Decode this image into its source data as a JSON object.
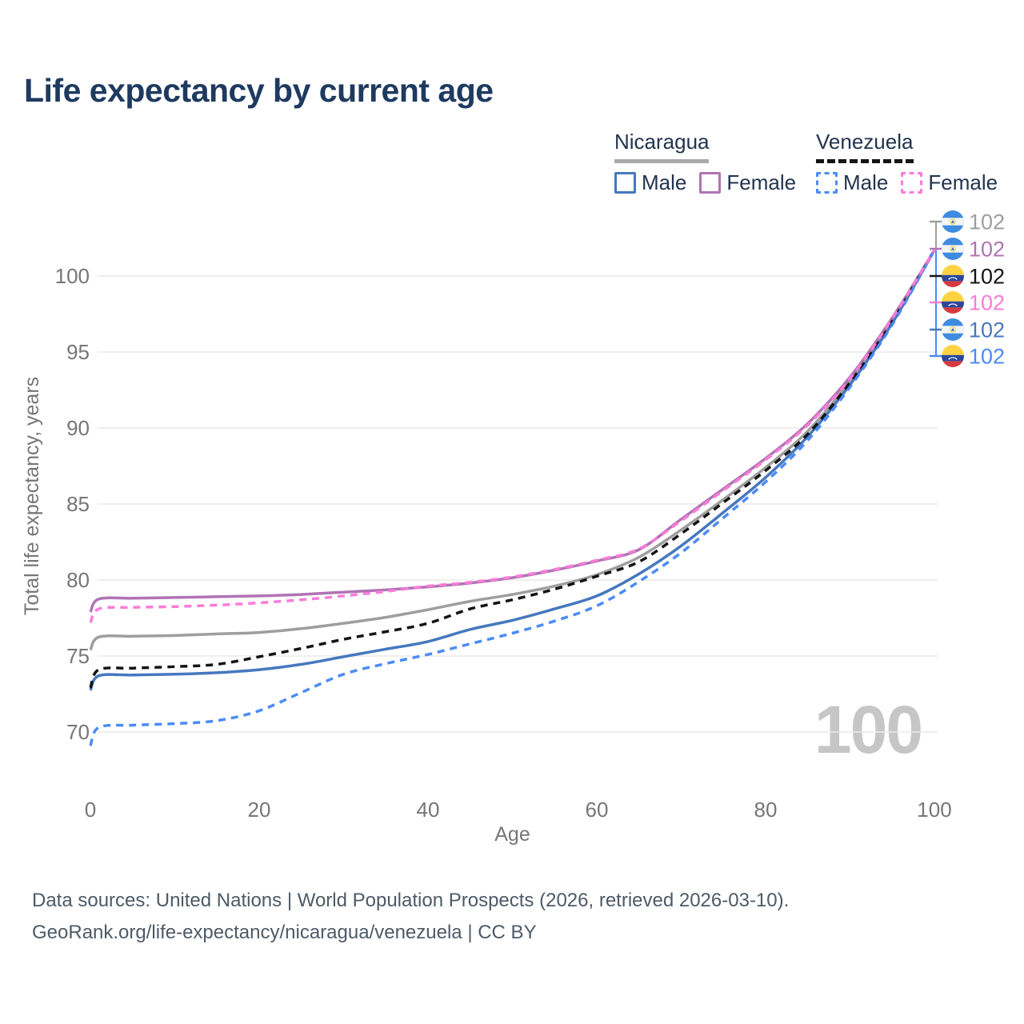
{
  "title": "Life expectancy by current age",
  "legend": {
    "groups": [
      {
        "name": "Nicaragua",
        "line_style": "solid",
        "line_color": "#A9A9A9",
        "items": [
          {
            "label": "Male",
            "color": "#4678BE",
            "dash": false
          },
          {
            "label": "Female",
            "color": "#B173B4",
            "dash": false
          }
        ]
      },
      {
        "name": "Venezuela",
        "line_style": "dashed",
        "line_color": "#141414",
        "items": [
          {
            "label": "Male",
            "color": "#4C8BF5",
            "dash": true
          },
          {
            "label": "Female",
            "color": "#F97CD8",
            "dash": true
          }
        ]
      }
    ]
  },
  "footer": {
    "line1": "Data sources: United Nations | World Population Prospects (2026, retrieved 2026-03-10).",
    "line2": "GeoRank.org/life-expectancy/nicaragua/venezuela | CC BY"
  },
  "chart_data": {
    "type": "line",
    "title": "Life expectancy by current age",
    "xlabel": "Age",
    "ylabel": "Total life expectancy, years",
    "xlim": [
      0,
      100
    ],
    "ylim": [
      68.5,
      103
    ],
    "xticks": [
      0,
      20,
      40,
      60,
      80,
      100
    ],
    "yticks": [
      70,
      75,
      80,
      85,
      90,
      95,
      100
    ],
    "grid": "horizontal",
    "legend_position": "top-right",
    "watermark_age": "100",
    "x": [
      0,
      1,
      5,
      10,
      15,
      20,
      25,
      30,
      35,
      40,
      45,
      50,
      55,
      60,
      65,
      70,
      75,
      80,
      85,
      90,
      95,
      100
    ],
    "series": [
      {
        "id": "nicaragua-total",
        "name": "Nicaragua Total",
        "country": "Nicaragua",
        "sex": "Total",
        "color": "#9E9E9E",
        "dash": false,
        "values": [
          75.4,
          76.25,
          76.3,
          76.35,
          76.45,
          76.55,
          76.8,
          77.15,
          77.55,
          78.05,
          78.6,
          79.05,
          79.6,
          80.35,
          81.5,
          83.3,
          85.3,
          87.4,
          89.8,
          93.1,
          97.1,
          101.7
        ]
      },
      {
        "id": "nicaragua-male",
        "name": "Nicaragua Male",
        "country": "Nicaragua",
        "sex": "Male",
        "color": "#4678BE",
        "dash": false,
        "values": [
          72.75,
          73.7,
          73.75,
          73.8,
          73.9,
          74.1,
          74.45,
          74.95,
          75.45,
          75.95,
          76.75,
          77.35,
          78.1,
          78.95,
          80.4,
          82.25,
          84.45,
          86.75,
          89.45,
          92.85,
          96.9,
          101.7
        ]
      },
      {
        "id": "nicaragua-female",
        "name": "Nicaragua Female",
        "country": "Nicaragua",
        "sex": "Female",
        "color": "#B173B4",
        "dash": false,
        "values": [
          77.9,
          78.75,
          78.8,
          78.85,
          78.9,
          78.95,
          79.05,
          79.2,
          79.35,
          79.55,
          79.8,
          80.15,
          80.65,
          81.25,
          82.0,
          84.0,
          86.0,
          88.0,
          90.3,
          93.35,
          97.25,
          101.7
        ]
      },
      {
        "id": "venezuela-total",
        "name": "Venezuela Total",
        "country": "Venezuela",
        "sex": "Total",
        "color": "#141414",
        "dash": true,
        "values": [
          72.9,
          74.1,
          74.2,
          74.3,
          74.45,
          74.95,
          75.5,
          76.1,
          76.6,
          77.15,
          78.1,
          78.7,
          79.4,
          80.25,
          81.2,
          83.05,
          85.1,
          87.2,
          89.6,
          93.0,
          97.0,
          101.7
        ]
      },
      {
        "id": "venezuela-male",
        "name": "Venezuela Male",
        "country": "Venezuela",
        "sex": "Male",
        "color": "#4C8BF5",
        "dash": true,
        "values": [
          69.1,
          70.3,
          70.45,
          70.55,
          70.75,
          71.4,
          72.6,
          73.8,
          74.5,
          75.1,
          75.8,
          76.5,
          77.3,
          78.3,
          79.9,
          81.8,
          84.1,
          86.45,
          89.2,
          92.7,
          96.8,
          101.7
        ]
      },
      {
        "id": "venezuela-female",
        "name": "Venezuela Female",
        "country": "Venezuela",
        "sex": "Female",
        "color": "#F97CD8",
        "dash": true,
        "values": [
          77.2,
          78.1,
          78.2,
          78.25,
          78.35,
          78.5,
          78.7,
          78.95,
          79.25,
          79.6,
          79.85,
          80.2,
          80.7,
          81.3,
          82.05,
          83.9,
          85.9,
          87.9,
          90.2,
          93.25,
          97.2,
          101.7
        ]
      }
    ],
    "end_labels": [
      {
        "series_id": "nicaragua-total",
        "flag": "nicaragua",
        "value": "102",
        "color": "#9E9E9E"
      },
      {
        "series_id": "nicaragua-female",
        "flag": "nicaragua",
        "value": "102",
        "color": "#B173B4"
      },
      {
        "series_id": "venezuela-total",
        "flag": "venezuela",
        "value": "102",
        "color": "#141414"
      },
      {
        "series_id": "venezuela-female",
        "flag": "venezuela",
        "value": "102",
        "color": "#F97CD8"
      },
      {
        "series_id": "nicaragua-male",
        "flag": "nicaragua",
        "value": "102",
        "color": "#4678BE"
      },
      {
        "series_id": "venezuela-male",
        "flag": "venezuela",
        "value": "102",
        "color": "#4C8BF5"
      }
    ]
  }
}
